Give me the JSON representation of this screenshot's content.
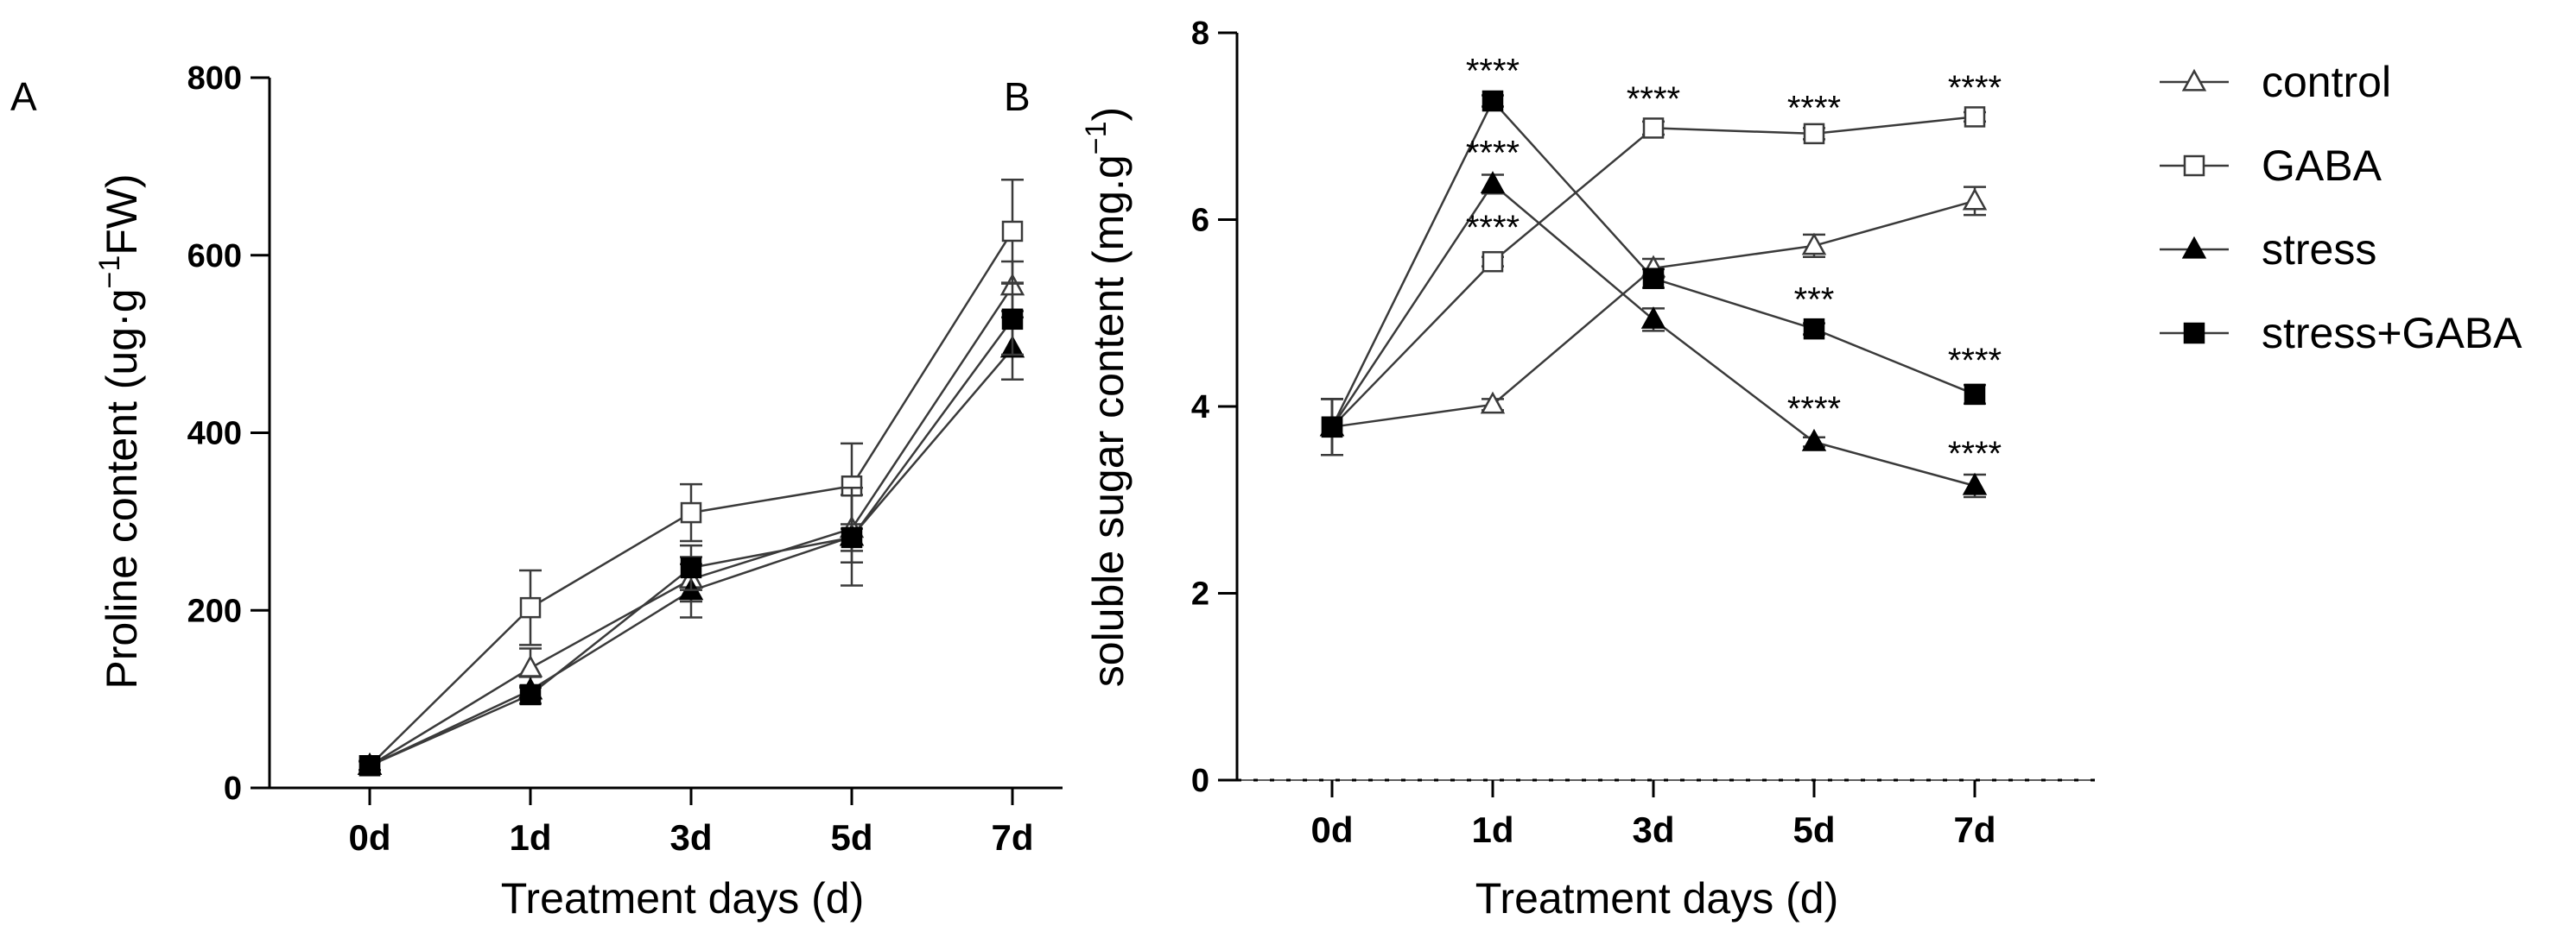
{
  "chart_data": [
    {
      "panel": "A",
      "type": "line",
      "categories": [
        "0d",
        "1d",
        "3d",
        "5d",
        "7d"
      ],
      "xlabel": "Treatment days (d)",
      "ylabel": {
        "pre": "Proline content (ug·g",
        "sup": "−1",
        "post": "FW)"
      },
      "ylim": [
        0,
        800
      ],
      "yticks": [
        "0",
        "200",
        "400",
        "600",
        "800"
      ],
      "ytick_values": [
        0,
        200,
        400,
        600,
        800
      ],
      "series": [
        {
          "name": "control",
          "marker": "triangle-open",
          "values": [
            25,
            135,
            235,
            292,
            565
          ],
          "errors": [
            5,
            22,
            25,
            38,
            28
          ]
        },
        {
          "name": "GABA",
          "marker": "square-open",
          "values": [
            25,
            203,
            310,
            340,
            627
          ],
          "errors": [
            5,
            42,
            32,
            48,
            58
          ]
        },
        {
          "name": "stress",
          "marker": "triangle-filled",
          "values": [
            25,
            110,
            222,
            283,
            495
          ],
          "errors": [
            5,
            15,
            30,
            55,
            35
          ]
        },
        {
          "name": "stress+GABA",
          "marker": "square-filled",
          "values": [
            25,
            105,
            248,
            282,
            528
          ],
          "errors": [
            5,
            10,
            25,
            15,
            40
          ]
        }
      ],
      "annotations": []
    },
    {
      "panel": "B",
      "type": "line",
      "categories": [
        "0d",
        "1d",
        "3d",
        "5d",
        "7d"
      ],
      "xlabel": "Treatment days (d)",
      "ylabel": {
        "pre": "soluble sugar content (mg.g",
        "sup": "−1",
        "post": ")"
      },
      "ylim": [
        0,
        8
      ],
      "yticks": [
        "0",
        "2",
        "4",
        "6",
        "8"
      ],
      "ytick_values": [
        0,
        2,
        4,
        6,
        8
      ],
      "series": [
        {
          "name": "control",
          "marker": "triangle-open",
          "values": [
            3.78,
            4.02,
            5.48,
            5.72,
            6.2
          ],
          "errors": [
            0.3,
            0.06,
            0.1,
            0.12,
            0.15
          ]
        },
        {
          "name": "GABA",
          "marker": "square-open",
          "values": [
            3.78,
            5.55,
            6.98,
            6.92,
            7.1
          ],
          "errors": [
            0.3,
            0.05,
            0.07,
            0.06,
            0.05
          ]
        },
        {
          "name": "stress",
          "marker": "triangle-filled",
          "values": [
            3.78,
            6.38,
            4.93,
            3.62,
            3.15
          ],
          "errors": [
            0.3,
            0.1,
            0.12,
            0.05,
            0.12
          ]
        },
        {
          "name": "stress+GABA",
          "marker": "square-filled",
          "values": [
            3.78,
            7.27,
            5.37,
            4.83,
            4.13
          ],
          "errors": [
            0.3,
            0.06,
            0.1,
            0.06,
            0.1
          ]
        }
      ],
      "annotations": [
        {
          "category": "1d",
          "value": 7.6,
          "text": "****"
        },
        {
          "category": "1d",
          "value": 6.72,
          "text": "****"
        },
        {
          "category": "1d",
          "value": 5.92,
          "text": "****"
        },
        {
          "category": "3d",
          "value": 7.3,
          "text": "****"
        },
        {
          "category": "5d",
          "value": 7.2,
          "text": "****"
        },
        {
          "category": "5d",
          "value": 5.15,
          "text": "***"
        },
        {
          "category": "5d",
          "value": 3.98,
          "text": "****"
        },
        {
          "category": "7d",
          "value": 7.42,
          "text": "****"
        },
        {
          "category": "7d",
          "value": 4.5,
          "text": "****"
        },
        {
          "category": "7d",
          "value": 3.5,
          "text": "****"
        }
      ]
    }
  ],
  "legend": [
    {
      "label": "control",
      "marker": "triangle-open"
    },
    {
      "label": "GABA",
      "marker": "square-open"
    },
    {
      "label": "stress",
      "marker": "triangle-filled"
    },
    {
      "label": "stress+GABA",
      "marker": "square-filled"
    }
  ]
}
